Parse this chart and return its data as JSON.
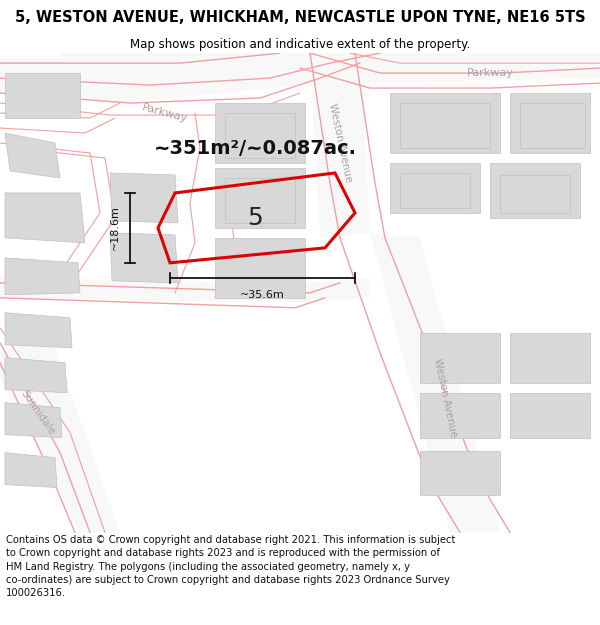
{
  "title_line1": "5, WESTON AVENUE, WHICKHAM, NEWCASTLE UPON TYNE, NE16 5TS",
  "title_line2": "Map shows position and indicative extent of the property.",
  "footer_text": "Contains OS data © Crown copyright and database right 2021. This information is subject to Crown copyright and database rights 2023 and is reproduced with the permission of HM Land Registry. The polygons (including the associated geometry, namely x, y co-ordinates) are subject to Crown copyright and database rights 2023 Ordnance Survey 100026316.",
  "area_text": "~351m²/~0.087ac.",
  "property_number": "5",
  "width_label": "~35.6m",
  "height_label": "~18.6m",
  "bg_color": "#ffffff",
  "map_bg": "#f5f5f5",
  "building_color": "#d8d8d8",
  "building_edge": "#c0c0c0",
  "road_line_color": "#f0a0a0",
  "property_outline_color": "#dd0000",
  "road_label_color": "#b0a0a0",
  "title_fontsize": 10.5,
  "subtitle_fontsize": 8.5,
  "footer_fontsize": 7.2,
  "area_fontsize": 14,
  "dim_fontsize": 8,
  "num_fontsize": 18,
  "road_label_fontsize": 8
}
